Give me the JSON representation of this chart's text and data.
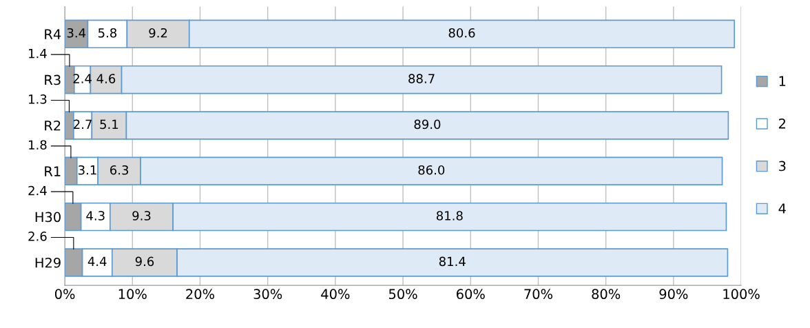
{
  "chart_data": {
    "type": "bar",
    "orientation": "horizontal",
    "stacked": true,
    "categories": [
      "R4",
      "R3",
      "R2",
      "R1",
      "H30",
      "H29"
    ],
    "series": [
      {
        "name": "1",
        "color": "#a6a6a6",
        "values": [
          3.4,
          1.4,
          1.3,
          1.8,
          2.4,
          2.6
        ],
        "value_labels": [
          "3.4",
          "1.4",
          "1.3",
          "1.8",
          "2.4",
          "2.6"
        ]
      },
      {
        "name": "2",
        "color": "#ffffff",
        "values": [
          5.8,
          2.4,
          2.7,
          3.1,
          4.3,
          4.4
        ],
        "value_labels": [
          "5.8",
          "2.4",
          "2.7",
          "3.1",
          "4.3",
          "4.4"
        ]
      },
      {
        "name": "3",
        "color": "#d9d9d9",
        "values": [
          9.2,
          4.6,
          5.1,
          6.3,
          9.3,
          9.6
        ],
        "value_labels": [
          "9.2",
          "4.6",
          "5.1",
          "6.3",
          "9.3",
          "9.6"
        ]
      },
      {
        "name": "4",
        "color": "#deebf7",
        "values": [
          80.6,
          88.7,
          89.0,
          86.0,
          81.8,
          81.4
        ],
        "value_labels": [
          "80.6",
          "88.7",
          "89.0",
          "86.0",
          "81.8",
          "81.4"
        ]
      }
    ],
    "xlim": [
      0,
      100
    ],
    "xticks": [
      {
        "value": 0,
        "label": "0%"
      },
      {
        "value": 10,
        "label": "10%"
      },
      {
        "value": 20,
        "label": "20%"
      },
      {
        "value": 30,
        "label": "30%"
      },
      {
        "value": 40,
        "label": "40%"
      },
      {
        "value": 50,
        "label": "50%"
      },
      {
        "value": 60,
        "label": "60%"
      },
      {
        "value": 70,
        "label": "70%"
      },
      {
        "value": 80,
        "label": "80%"
      },
      {
        "value": 90,
        "label": "90%"
      },
      {
        "value": 100,
        "label": "100%"
      }
    ],
    "grid": "x",
    "legend": "right"
  }
}
